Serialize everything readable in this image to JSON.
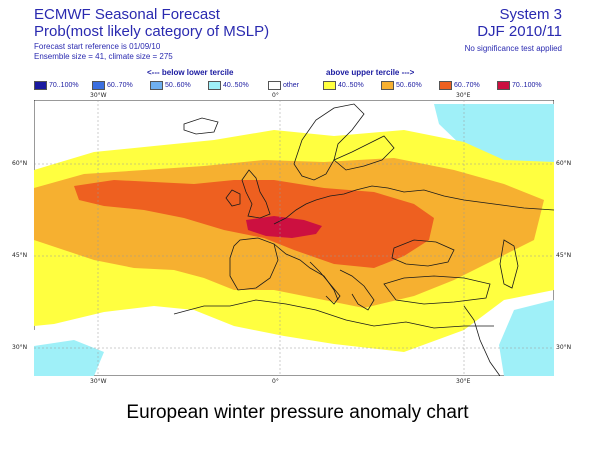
{
  "header": {
    "title": "ECMWF Seasonal Forecast",
    "subtitle": "Prob(most likely category of MSLP)",
    "forecast_start": "Forecast start reference is 01/09/10",
    "ensemble": "Ensemble size = 41, climate size = 275",
    "system": "System 3",
    "season": "DJF 2010/11",
    "significance": "No significance test applied"
  },
  "legend": {
    "below_caption": "<--- below lower tercile",
    "above_caption": "above upper tercile --->",
    "items": [
      {
        "label": "70..100%",
        "color": "#1a1aa0"
      },
      {
        "label": "60..70%",
        "color": "#3b6fe0"
      },
      {
        "label": "50..60%",
        "color": "#6fb0f0"
      },
      {
        "label": "40..50%",
        "color": "#9ff0f8"
      },
      {
        "label": "other",
        "color": "#ffffff"
      },
      {
        "label": "40..50%",
        "color": "#ffff40"
      },
      {
        "label": "50..60%",
        "color": "#f6b030"
      },
      {
        "label": "60..70%",
        "color": "#ee6020"
      },
      {
        "label": "70..100%",
        "color": "#cc1040"
      }
    ]
  },
  "map": {
    "lon_ticks": [
      "30°W",
      "0°",
      "30°E"
    ],
    "lat_ticks": [
      "60°N",
      "45°N",
      "30°N"
    ]
  },
  "caption": "European winter pressure anomaly chart"
}
